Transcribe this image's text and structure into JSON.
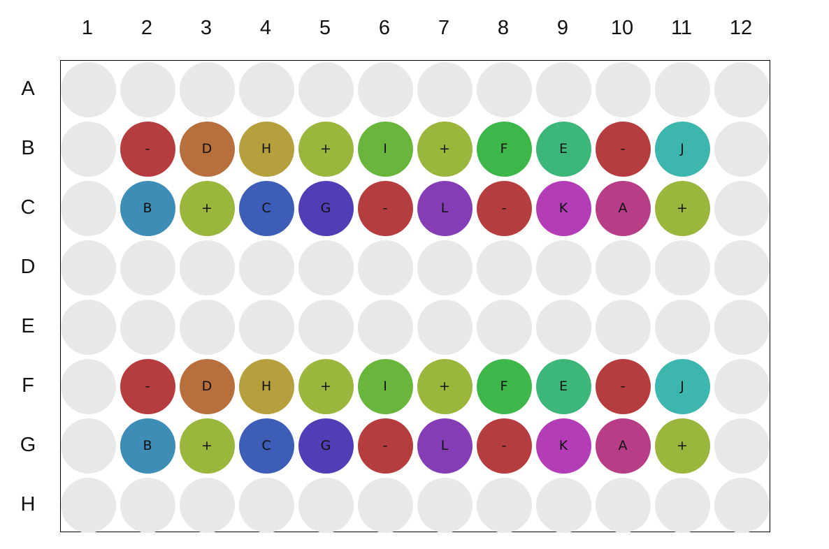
{
  "columns": [
    "1",
    "2",
    "3",
    "4",
    "5",
    "6",
    "7",
    "8",
    "9",
    "10",
    "11",
    "12"
  ],
  "rows": [
    "A",
    "B",
    "C",
    "D",
    "E",
    "F",
    "G",
    "H"
  ],
  "empty_color": "#e8e8e8",
  "colors": {
    "-": "#b63d3f",
    "A": "#b63d86",
    "B": "#3d8db6",
    "C": "#3d5db6",
    "D": "#b66f3d",
    "E": "#3db67a",
    "F": "#3db64a",
    "G": "#533db6",
    "H": "#b6a03d",
    "I": "#6ab63d",
    "J": "#3db6ae",
    "K": "#b33db6",
    "L": "#853db6",
    "+": "#9ab63d"
  },
  "wells": {
    "B": [
      "",
      "-",
      "D",
      "H",
      "+",
      "I",
      "+",
      "F",
      "E",
      "-",
      "J",
      ""
    ],
    "C": [
      "",
      "B",
      "+",
      "C",
      "G",
      "-",
      "L",
      "-",
      "K",
      "A",
      "+",
      ""
    ],
    "F": [
      "",
      "-",
      "D",
      "H",
      "+",
      "I",
      "+",
      "F",
      "E",
      "-",
      "J",
      ""
    ],
    "G": [
      "",
      "B",
      "+",
      "C",
      "G",
      "-",
      "L",
      "-",
      "K",
      "A",
      "+",
      ""
    ]
  }
}
